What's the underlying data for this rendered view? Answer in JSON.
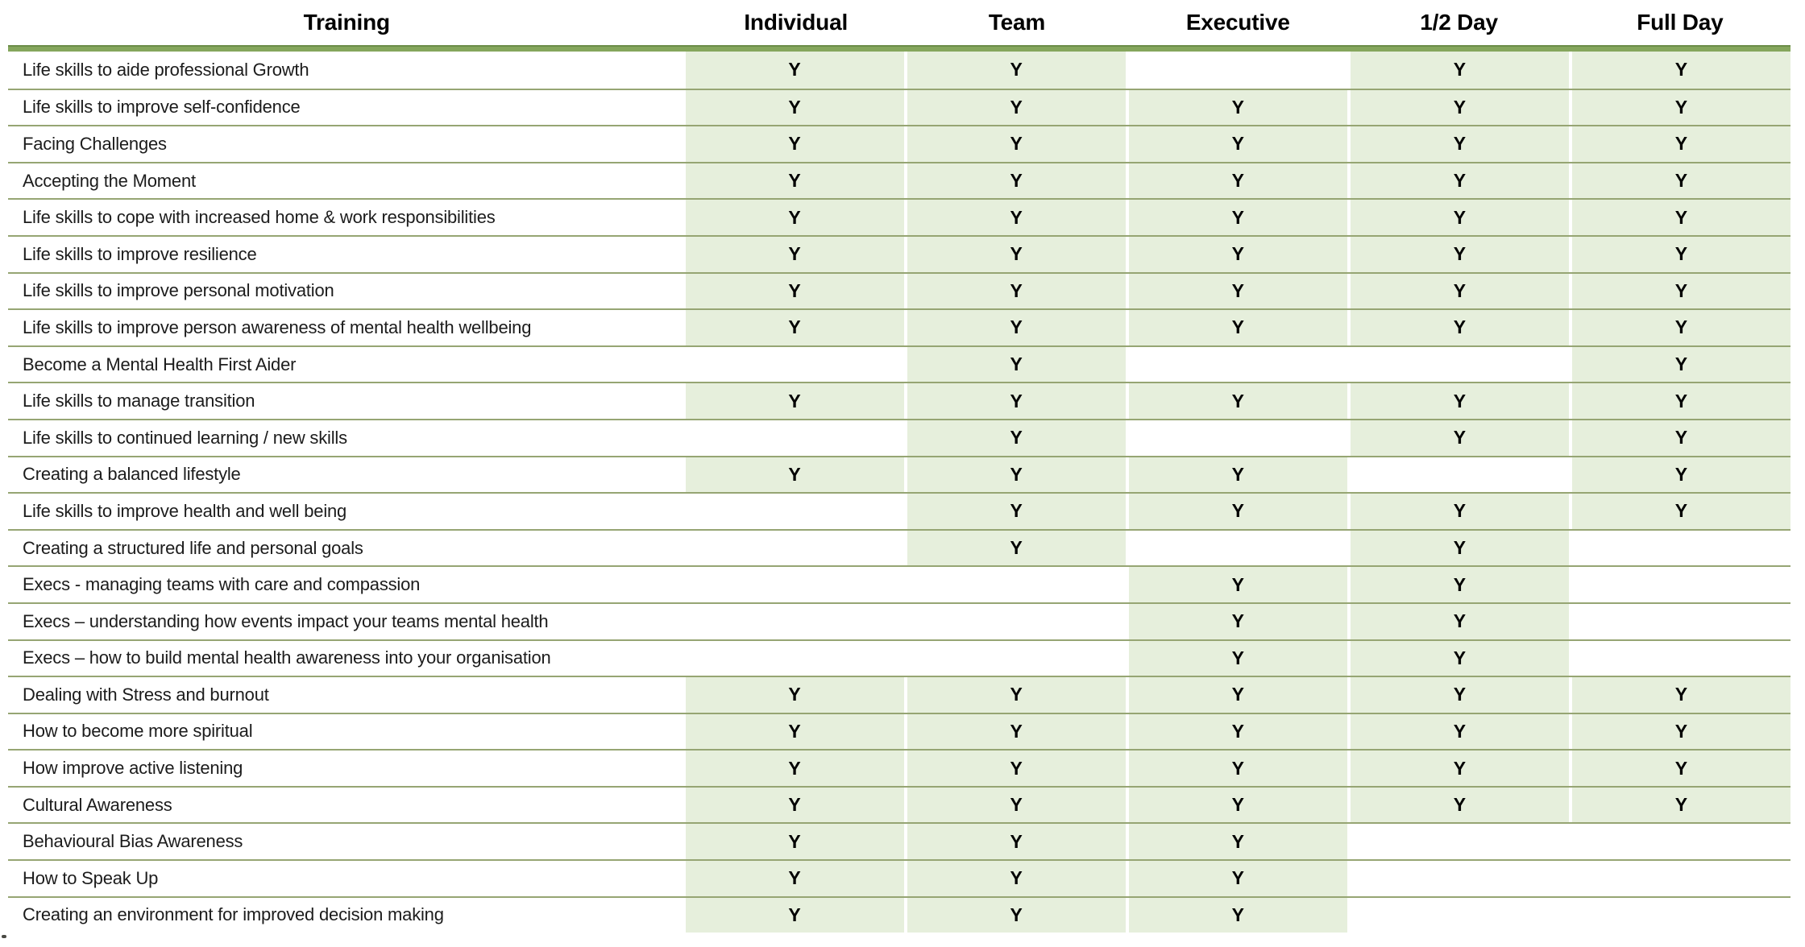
{
  "table": {
    "columns": [
      {
        "key": "training",
        "label": "Training"
      },
      {
        "key": "individual",
        "label": "Individual"
      },
      {
        "key": "team",
        "label": "Team"
      },
      {
        "key": "executive",
        "label": "Executive"
      },
      {
        "key": "half-day",
        "label": "1/2 Day"
      },
      {
        "key": "full-day",
        "label": "Full Day"
      }
    ],
    "rows": [
      {
        "label": "Life skills to aide professional Growth",
        "marks": [
          "Y",
          "Y",
          "",
          "Y",
          "Y"
        ]
      },
      {
        "label": "Life skills to improve self-confidence",
        "marks": [
          "Y",
          "Y",
          "Y",
          "Y",
          "Y"
        ]
      },
      {
        "label": "Facing Challenges",
        "marks": [
          "Y",
          "Y",
          "Y",
          "Y",
          "Y"
        ]
      },
      {
        "label": "Accepting the Moment",
        "marks": [
          "Y",
          "Y",
          "Y",
          "Y",
          "Y"
        ]
      },
      {
        "label": "Life skills to cope with increased home & work responsibilities",
        "marks": [
          "Y",
          "Y",
          "Y",
          "Y",
          "Y"
        ]
      },
      {
        "label": "Life skills to improve resilience",
        "marks": [
          "Y",
          "Y",
          "Y",
          "Y",
          "Y"
        ]
      },
      {
        "label": "Life skills to improve personal motivation",
        "marks": [
          "Y",
          "Y",
          "Y",
          "Y",
          "Y"
        ]
      },
      {
        "label": "Life skills to improve person awareness of mental health wellbeing",
        "marks": [
          "Y",
          "Y",
          "Y",
          "Y",
          "Y"
        ]
      },
      {
        "label": "Become a Mental Health First Aider",
        "marks": [
          "",
          "Y",
          "",
          "",
          "Y"
        ]
      },
      {
        "label": "Life skills to manage transition",
        "marks": [
          "Y",
          "Y",
          "Y",
          "Y",
          "Y"
        ]
      },
      {
        "label": "Life skills to continued learning / new skills",
        "marks": [
          "",
          "Y",
          "",
          "Y",
          "Y"
        ]
      },
      {
        "label": "Creating a balanced lifestyle",
        "marks": [
          "Y",
          "Y",
          "Y",
          "",
          "Y"
        ]
      },
      {
        "label": "Life skills to improve health and well being",
        "marks": [
          "",
          "Y",
          "Y",
          "Y",
          "Y"
        ]
      },
      {
        "label": "Creating a structured life and personal goals",
        "marks": [
          "",
          "Y",
          "",
          "Y",
          ""
        ]
      },
      {
        "label": "Execs - managing teams with care and compassion",
        "marks": [
          "",
          "",
          "Y",
          "Y",
          ""
        ]
      },
      {
        "label": "Execs – understanding how events impact your teams mental health",
        "marks": [
          "",
          "",
          "Y",
          "Y",
          ""
        ]
      },
      {
        "label": "Execs – how to build mental health awareness into your organisation",
        "marks": [
          "",
          "",
          "Y",
          "Y",
          ""
        ]
      },
      {
        "label": "Dealing with Stress and burnout",
        "marks": [
          "Y",
          "Y",
          "Y",
          "Y",
          "Y"
        ]
      },
      {
        "label": "How to become more spiritual",
        "marks": [
          "Y",
          "Y",
          "Y",
          "Y",
          "Y"
        ]
      },
      {
        "label": "How improve active listening",
        "marks": [
          "Y",
          "Y",
          "Y",
          "Y",
          "Y"
        ]
      },
      {
        "label": "Cultural Awareness",
        "marks": [
          "Y",
          "Y",
          "Y",
          "Y",
          "Y"
        ]
      },
      {
        "label": "Behavioural Bias Awareness",
        "marks": [
          "Y",
          "Y",
          "Y",
          "",
          ""
        ]
      },
      {
        "label": "How to Speak Up",
        "marks": [
          "Y",
          "Y",
          "Y",
          "",
          ""
        ]
      },
      {
        "label": "Creating an environment for improved decision making",
        "marks": [
          "Y",
          "Y",
          "Y",
          "",
          ""
        ]
      }
    ]
  },
  "colors": {
    "header_bar_green": "#85a65c",
    "header_bar_edge": "#6b8c48",
    "row_border_olive": "#96a573",
    "cell_fill_green": "#e6efdc",
    "text": "#1c1c1c"
  }
}
